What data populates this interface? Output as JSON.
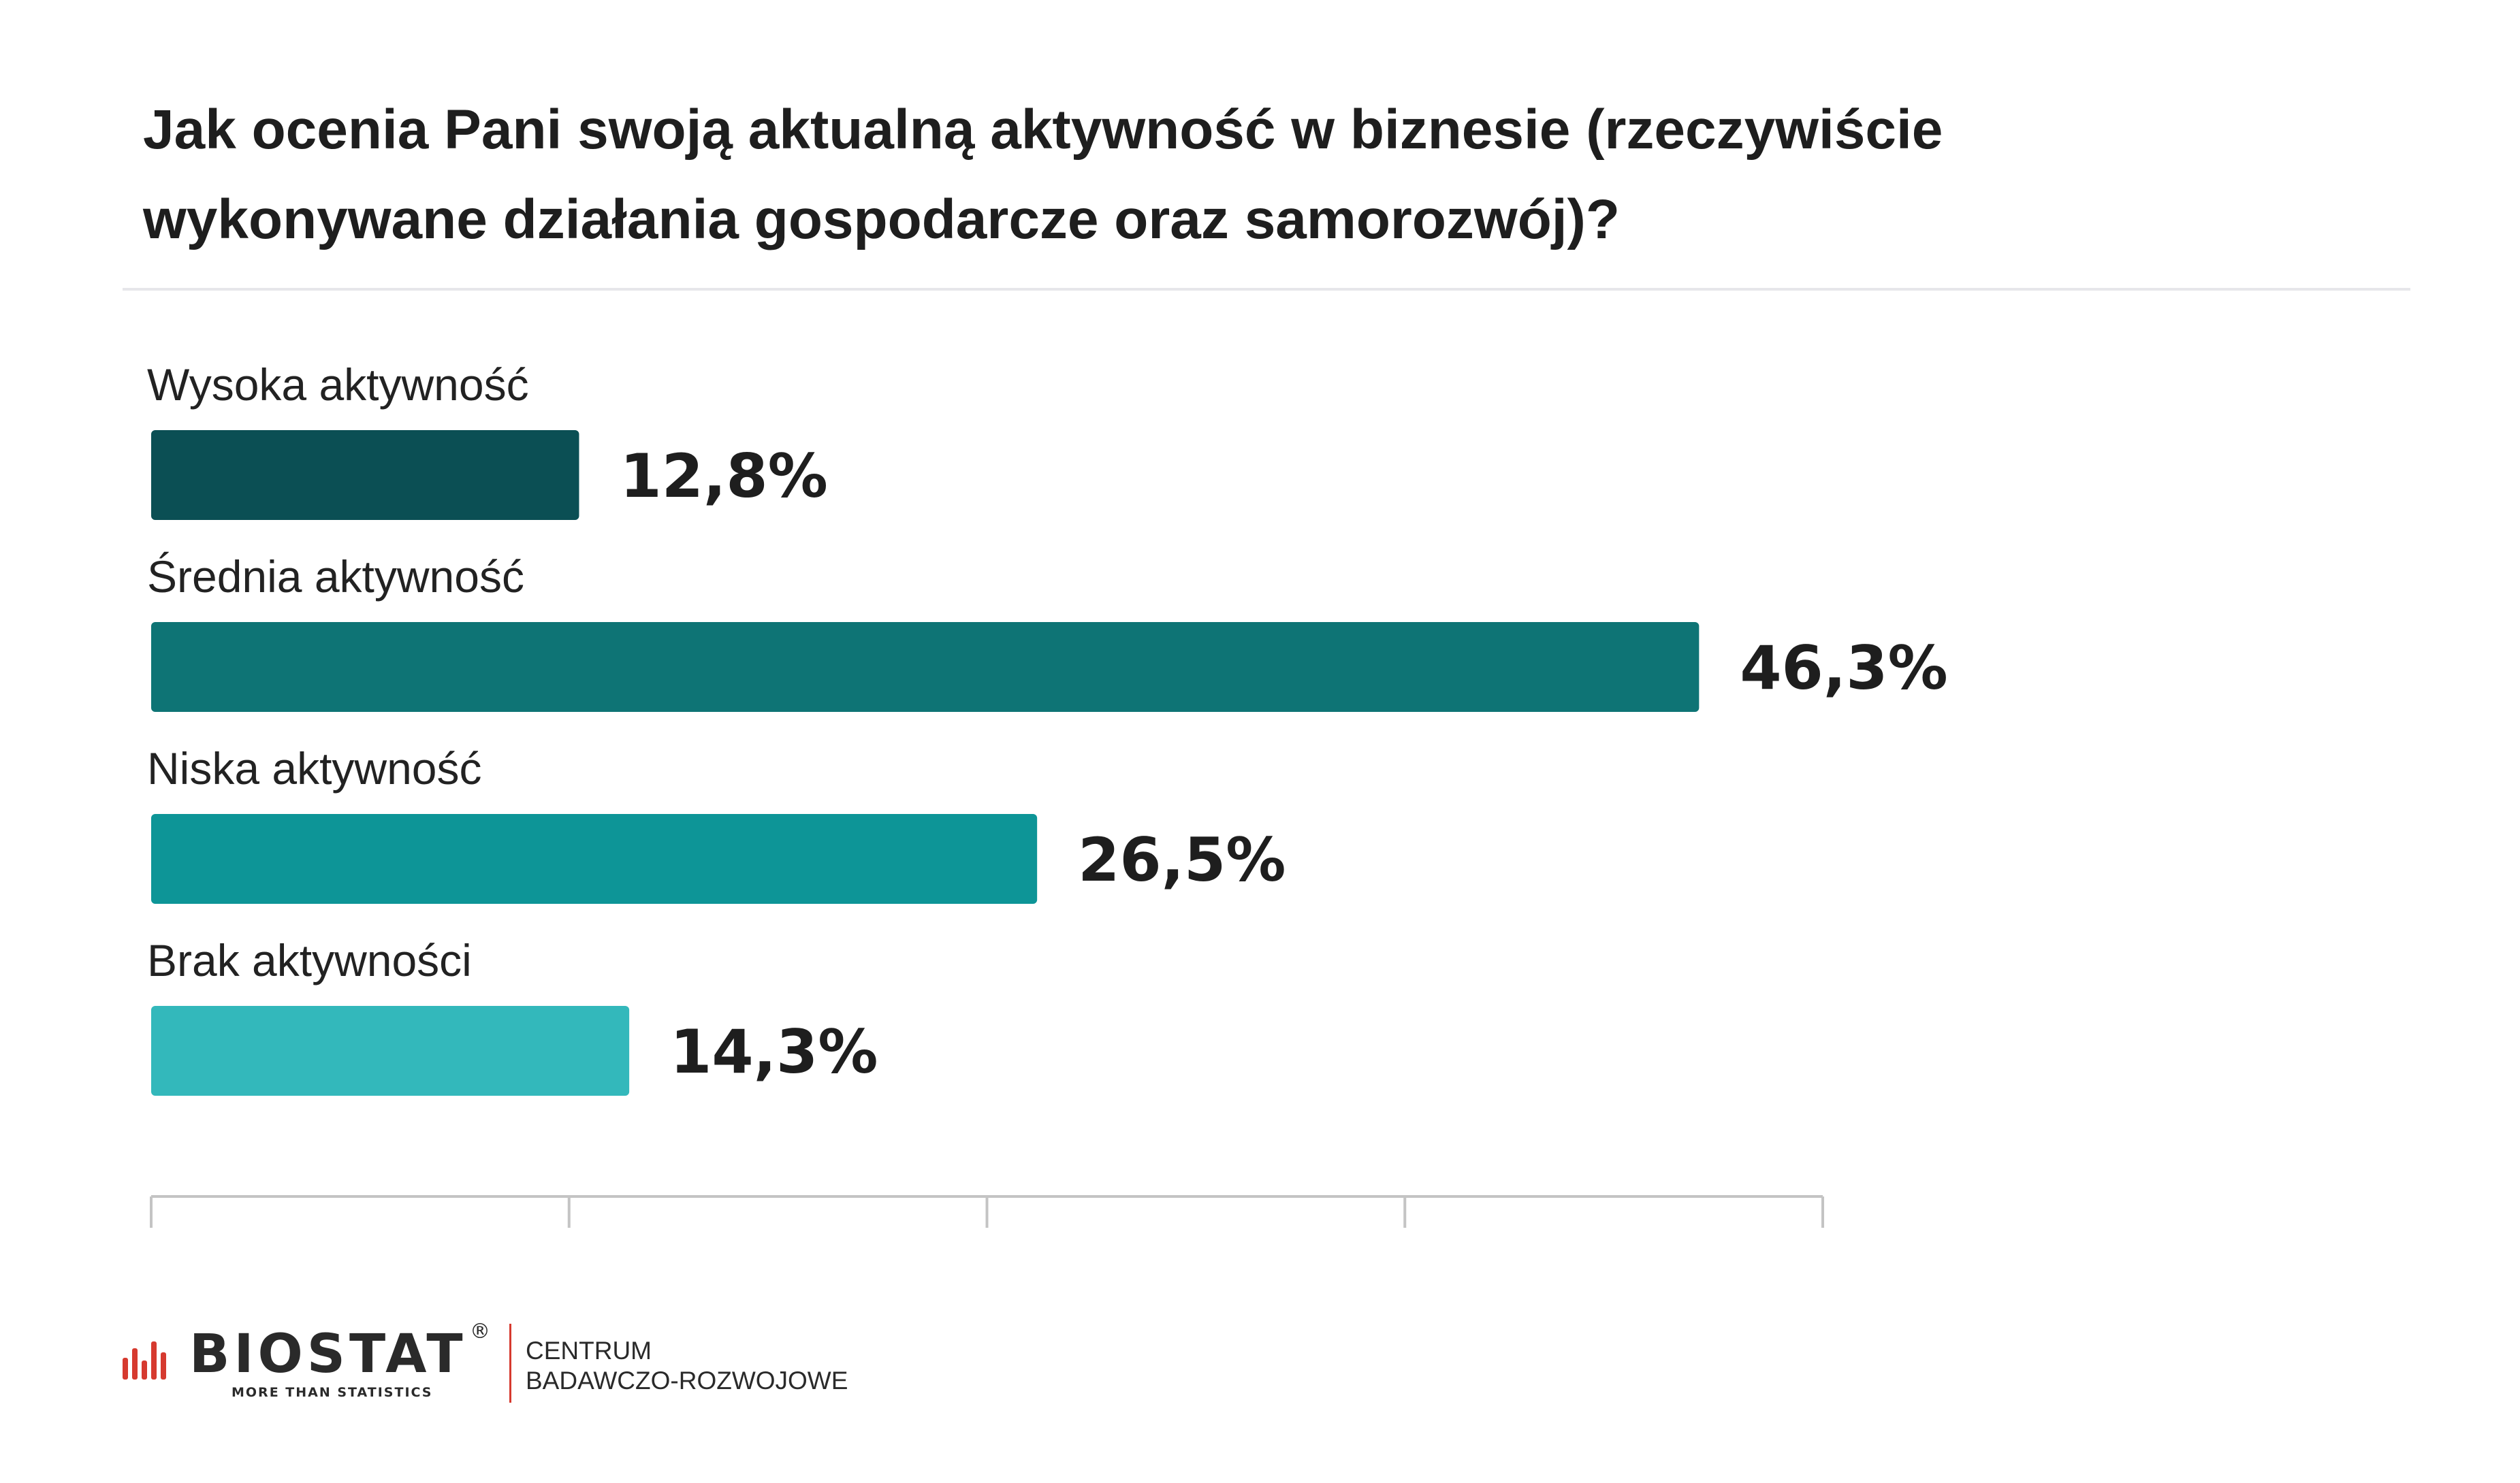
{
  "title_lines": [
    "Jak ocenia Pani swoją aktualną aktywność w biznesie (rzeczywiście",
    "wykonywane działania gospodarcze oraz samorozwój)?"
  ],
  "chart_data": {
    "type": "bar",
    "orientation": "horizontal",
    "title": "Jak ocenia Pani swoją aktualną aktywność w biznesie (rzeczywiście wykonywane działania gospodarcze oraz samorozwój)?",
    "categories": [
      "Wysoka aktywność",
      "Średnia aktywność",
      "Niska aktywność",
      "Brak aktywności"
    ],
    "values": [
      12.8,
      46.3,
      26.5,
      14.3
    ],
    "value_labels": [
      "12,8%",
      "46,3%",
      "26,5%",
      "14,3%"
    ],
    "colors": [
      "#0b4f54",
      "#0e7475",
      "#0d9597",
      "#33b8bb"
    ],
    "xlim": [
      0,
      50
    ],
    "grid": false,
    "legend": "none"
  },
  "footer": {
    "brand": "BIOSTAT",
    "registered_mark": "®",
    "tagline": "MORE THAN STATISTICS",
    "center_line1": "CENTRUM",
    "center_line2": "BADAWCZO-ROZWOJOWE",
    "brand_red": "#d63a2f"
  }
}
